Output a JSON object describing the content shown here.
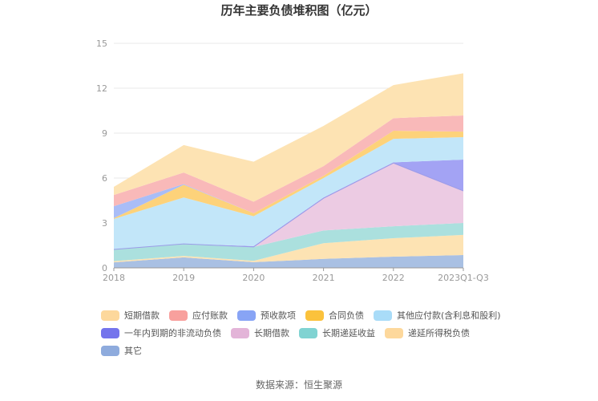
{
  "title": "历年主要负债堆积图（亿元）",
  "source": "数据来源：恒生聚源",
  "chart_data": {
    "type": "area",
    "stacked": true,
    "title": "历年主要负债堆积图（亿元）",
    "xlabel": "",
    "ylabel": "",
    "categories": [
      "2018",
      "2019",
      "2020",
      "2021",
      "2022",
      "2023Q1-Q3"
    ],
    "ylim": [
      0,
      15
    ],
    "yticks": [
      0,
      3,
      6,
      9,
      12,
      15
    ],
    "grid": true,
    "legend_position": "bottom",
    "stack_order_bottom_to_top": [
      "其它",
      "递延所得税负债",
      "长期递延收益",
      "长期借款",
      "一年内到期的非流动负债",
      "其他应付款(含利息和股利)",
      "合同负债",
      "预收款项",
      "应付账款",
      "短期借款"
    ],
    "series": [
      {
        "name": "短期借款",
        "color": "#fde3b3",
        "values": [
          0.54,
          1.83,
          2.67,
          2.68,
          2.21,
          2.82
        ]
      },
      {
        "name": "应付账款",
        "color": "#f9b9b9",
        "values": [
          0.75,
          0.77,
          0.77,
          0.65,
          0.84,
          1.08
        ]
      },
      {
        "name": "预收款项",
        "color": "#a9bdf7",
        "values": [
          0.8,
          0.05,
          0.0,
          0.0,
          0.0,
          0.0
        ]
      },
      {
        "name": "合同负债",
        "color": "#fdd27a",
        "values": [
          0.05,
          0.85,
          0.2,
          0.15,
          0.54,
          0.37
        ]
      },
      {
        "name": "其他应付款(含利息和股利)",
        "color": "#c2e6f9",
        "values": [
          2.04,
          3.1,
          2.0,
          1.3,
          1.57,
          1.5
        ]
      },
      {
        "name": "一年内到期的非流动负债",
        "color": "#a3a3f4",
        "values": [
          0.0,
          0.0,
          0.05,
          0.05,
          0.05,
          2.09
        ]
      },
      {
        "name": "长期借款",
        "color": "#eccbe3",
        "values": [
          0.0,
          0.0,
          0.0,
          2.15,
          4.22,
          2.14
        ]
      },
      {
        "name": "长期递延收益",
        "color": "#abe0de",
        "values": [
          0.78,
          0.8,
          0.93,
          0.85,
          0.8,
          0.8
        ]
      },
      {
        "name": "递延所得税负债",
        "color": "#fde3b3",
        "values": [
          0.08,
          0.1,
          0.09,
          1.05,
          1.23,
          1.34
        ]
      },
      {
        "name": "其它",
        "color": "#a9c0e3",
        "values": [
          0.37,
          0.7,
          0.38,
          0.6,
          0.75,
          0.86
        ]
      }
    ]
  },
  "legend": {
    "rows": [
      [
        {
          "label": "短期借款",
          "color": "#fdd89c"
        },
        {
          "label": "应付账款",
          "color": "#f8a09d"
        },
        {
          "label": "预收款项",
          "color": "#88a4f5"
        },
        {
          "label": "合同负债",
          "color": "#fbc23c"
        },
        {
          "label": "其他应付款(含利息和股利)",
          "color": "#a9dcf8"
        }
      ],
      [
        {
          "label": "一年内到期的非流动负债",
          "color": "#7474ec"
        },
        {
          "label": "长期借款",
          "color": "#e3b4d8"
        },
        {
          "label": "长期递延收益",
          "color": "#80d3d2"
        },
        {
          "label": "递延所得税负债",
          "color": "#fdd89c"
        }
      ],
      [
        {
          "label": "其它",
          "color": "#8eabdd"
        }
      ]
    ]
  }
}
